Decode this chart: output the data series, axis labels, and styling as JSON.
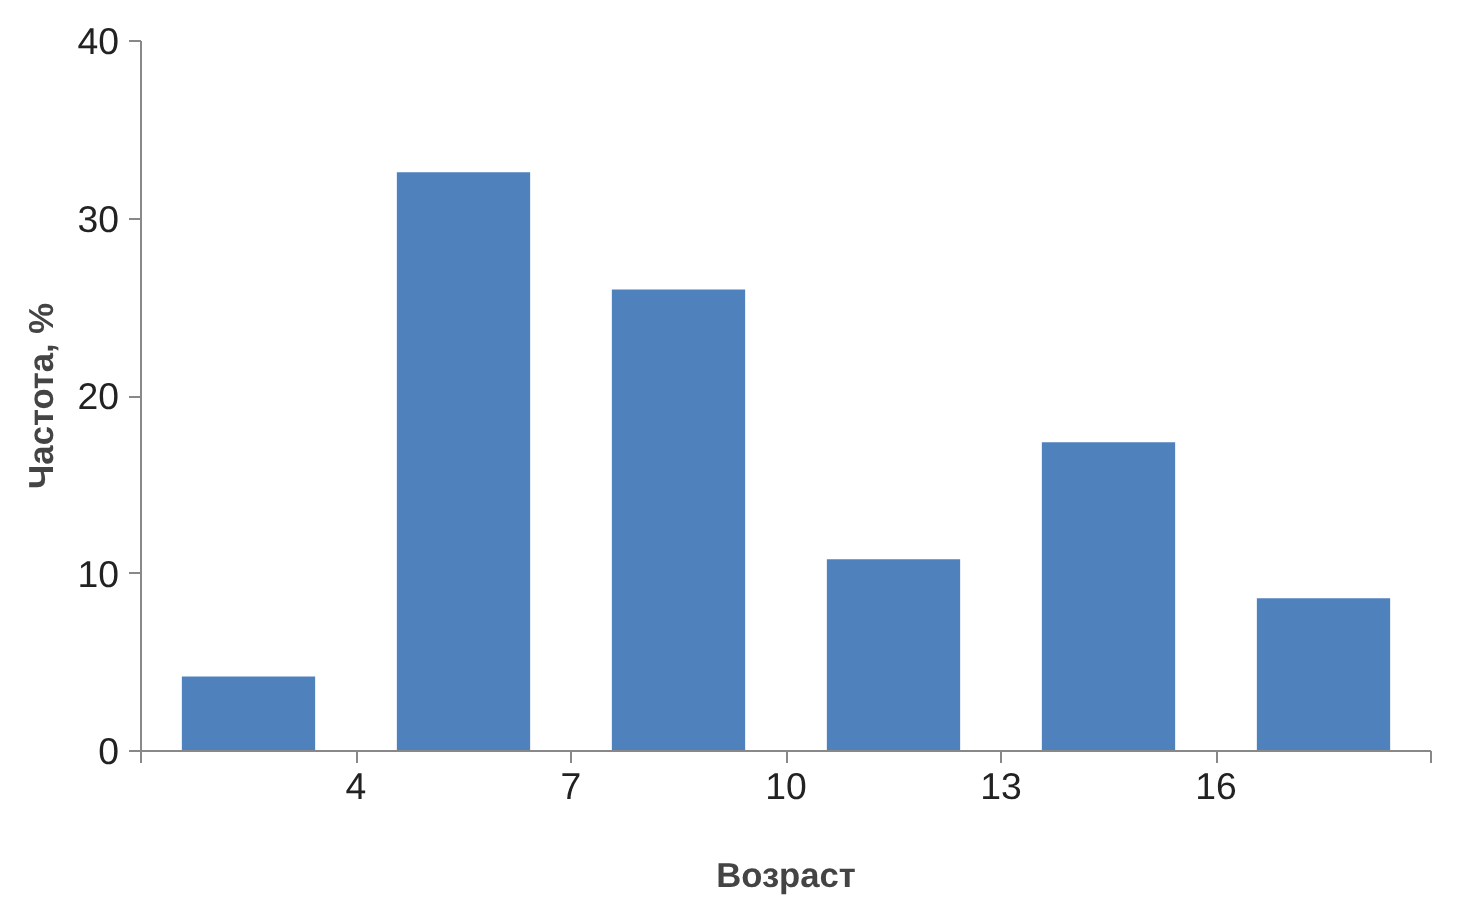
{
  "chart_data": {
    "type": "histogram",
    "xlabel": "Возраст",
    "ylabel": "Частота, %",
    "bins": [
      1,
      4,
      7,
      10,
      13,
      16,
      19
    ],
    "values": [
      4.2,
      32.6,
      26.0,
      10.8,
      17.4,
      8.6
    ],
    "color": "#4f81bd",
    "xlim": [
      1,
      19
    ],
    "xticks": [
      4,
      7,
      10,
      13,
      16
    ],
    "ylim": [
      0,
      40
    ],
    "yticks": [
      0,
      10,
      20,
      30,
      40
    ],
    "grid": false
  }
}
